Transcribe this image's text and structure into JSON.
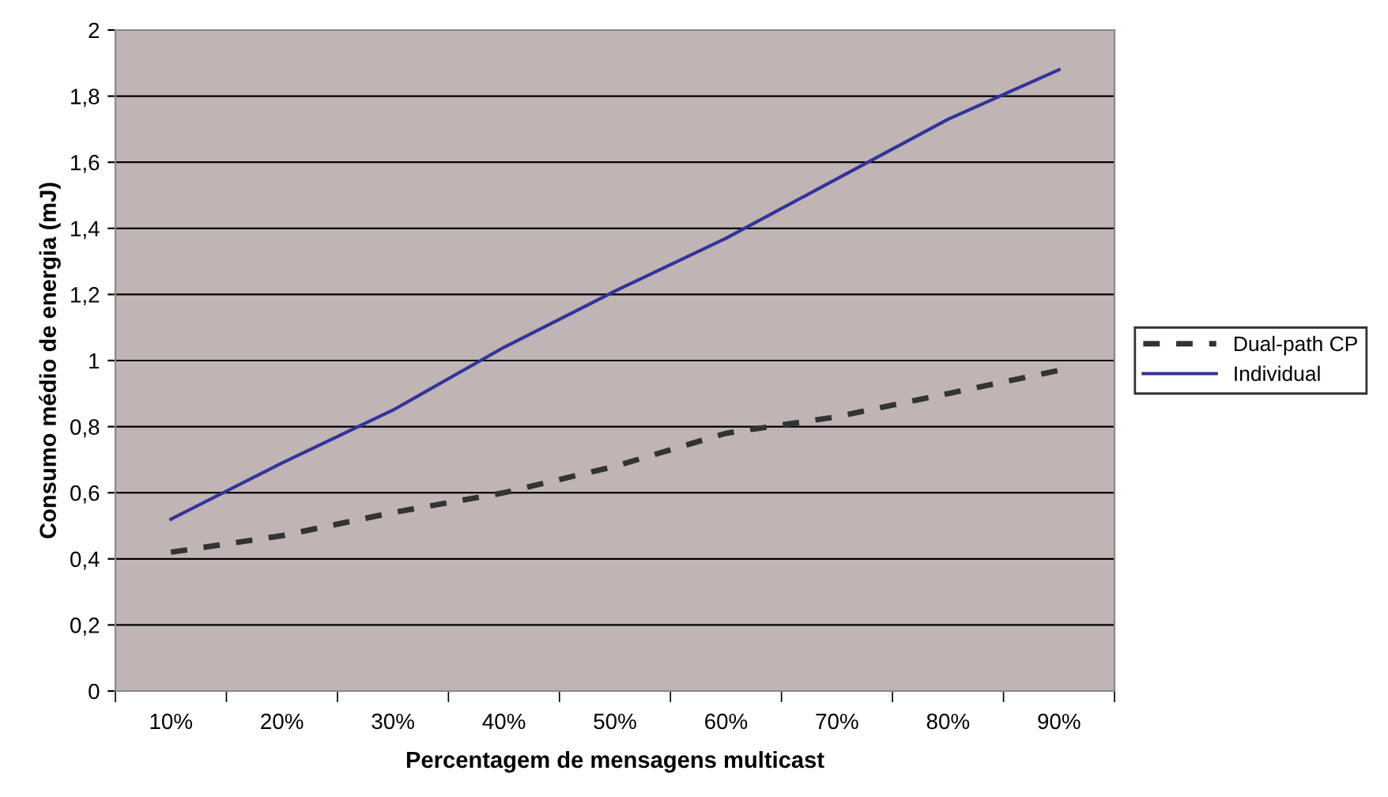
{
  "chart_data": {
    "type": "line",
    "xlabel": "Percentagem de mensagens multicast",
    "ylabel": "Consumo médio de energia (mJ)",
    "categories": [
      "10%",
      "20%",
      "30%",
      "40%",
      "50%",
      "60%",
      "70%",
      "80%",
      "90%"
    ],
    "series": [
      {
        "name": "Dual-path CP",
        "color": "#333333",
        "line_style": "dashed",
        "values": [
          0.42,
          0.47,
          0.54,
          0.6,
          0.68,
          0.78,
          0.83,
          0.9,
          0.97
        ]
      },
      {
        "name": "Individual",
        "color": "#333399",
        "line_style": "solid",
        "values": [
          0.52,
          0.69,
          0.85,
          1.04,
          1.21,
          1.37,
          1.55,
          1.73,
          1.88
        ]
      }
    ],
    "ylim": [
      0,
      2
    ],
    "yticks": [
      0,
      {
        "value": 0.2,
        "label": "0,2"
      },
      {
        "value": 0.4,
        "label": "0,4"
      },
      {
        "value": 0.6,
        "label": "0,6"
      },
      {
        "value": 0.8,
        "label": "0,8"
      },
      1,
      {
        "value": 1.2,
        "label": "1,2"
      },
      {
        "value": 1.4,
        "label": "1,4"
      },
      {
        "value": 1.6,
        "label": "1,6"
      },
      {
        "value": 1.8,
        "label": "1,8"
      },
      2
    ],
    "grid": "y",
    "legend": "right",
    "marker": "none"
  }
}
